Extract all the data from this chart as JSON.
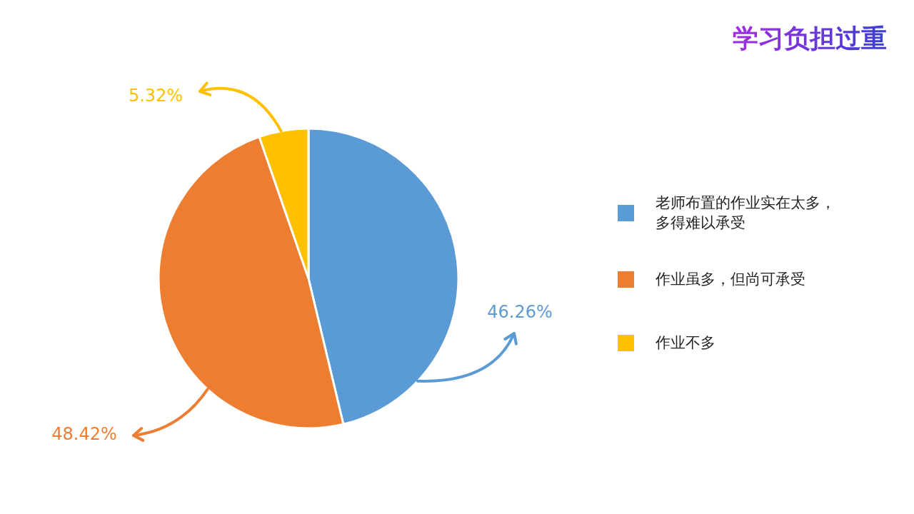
{
  "chart_data": {
    "type": "pie",
    "title": "学习负担过重",
    "categories": [
      "老师布置的作业实在太多，多得难以承受",
      "作业虽多，但尚可承受",
      "作业不多"
    ],
    "values": [
      46.26,
      48.42,
      5.32
    ],
    "colors": [
      "#5b9bd5",
      "#ed7d31",
      "#ffc000"
    ],
    "value_labels": [
      "46.26%",
      "48.42%",
      "5.32%"
    ],
    "legend": "right"
  }
}
